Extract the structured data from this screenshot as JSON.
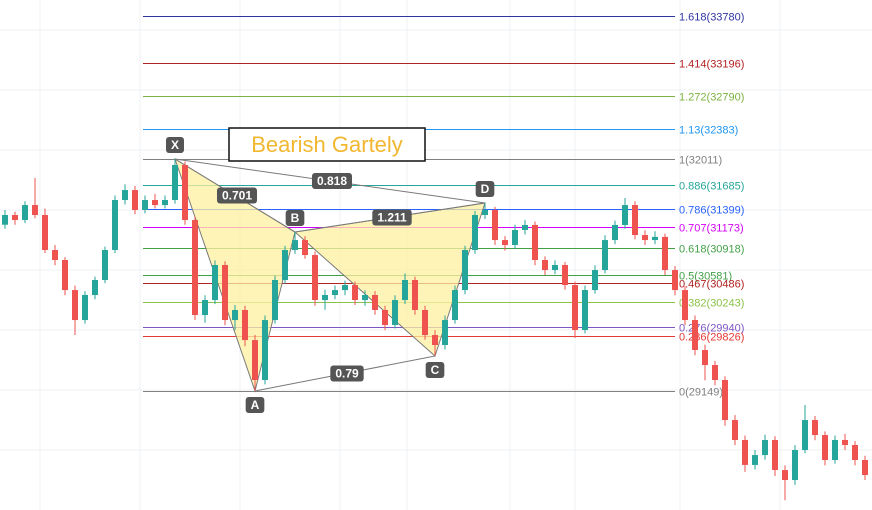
{
  "chart_data": {
    "type": "candlestick",
    "title": "Bearish Gartely",
    "ylim": [
      27680,
      33973
    ],
    "up_color": "#26a69a",
    "down_color": "#ef5350",
    "ohlc": [
      [
        31200,
        31380,
        31150,
        31320
      ],
      [
        31320,
        31360,
        31200,
        31258
      ],
      [
        31258,
        31490,
        31220,
        31443
      ],
      [
        31443,
        31777,
        31280,
        31320
      ],
      [
        31320,
        31400,
        30850,
        30888
      ],
      [
        30888,
        30950,
        30700,
        30765
      ],
      [
        30765,
        30800,
        30330,
        30394
      ],
      [
        30394,
        30450,
        29839,
        30024
      ],
      [
        30024,
        30380,
        29980,
        30333
      ],
      [
        30333,
        30560,
        30280,
        30518
      ],
      [
        30518,
        30930,
        30480,
        30888
      ],
      [
        30888,
        31560,
        30850,
        31505
      ],
      [
        31505,
        31700,
        31450,
        31628
      ],
      [
        31628,
        31680,
        31330,
        31382
      ],
      [
        31382,
        31560,
        31340,
        31505
      ],
      [
        31505,
        31580,
        31400,
        31443
      ],
      [
        31443,
        31560,
        31400,
        31505
      ],
      [
        31505,
        32011,
        31460,
        31937
      ],
      [
        31937,
        31980,
        31200,
        31258
      ],
      [
        31258,
        31300,
        30024,
        30086
      ],
      [
        30086,
        30330,
        29990,
        30271
      ],
      [
        30271,
        30760,
        30220,
        30703
      ],
      [
        30703,
        30750,
        29960,
        30024
      ],
      [
        30024,
        30210,
        29900,
        30148
      ],
      [
        30148,
        30200,
        29700,
        29777
      ],
      [
        29777,
        29840,
        29149,
        29284
      ],
      [
        29284,
        30080,
        29230,
        30024
      ],
      [
        30024,
        30570,
        29980,
        30518
      ],
      [
        30518,
        30940,
        30470,
        30888
      ],
      [
        30888,
        31110,
        30840,
        31011
      ],
      [
        31011,
        31060,
        30780,
        30826
      ],
      [
        30826,
        30870,
        30200,
        30271
      ],
      [
        30271,
        30400,
        30150,
        30333
      ],
      [
        30333,
        30450,
        30280,
        30394
      ],
      [
        30394,
        30510,
        30330,
        30456
      ],
      [
        30456,
        30500,
        30210,
        30271
      ],
      [
        30271,
        30390,
        30200,
        30333
      ],
      [
        30333,
        30380,
        30090,
        30148
      ],
      [
        30148,
        30200,
        29900,
        29963
      ],
      [
        29963,
        30330,
        29920,
        30271
      ],
      [
        30271,
        30600,
        30220,
        30518
      ],
      [
        30518,
        30560,
        30090,
        30148
      ],
      [
        30148,
        30200,
        29780,
        29839
      ],
      [
        29839,
        29900,
        29580,
        29716
      ],
      [
        29716,
        30080,
        29660,
        30024
      ],
      [
        30024,
        30450,
        29980,
        30394
      ],
      [
        30394,
        30940,
        30340,
        30888
      ],
      [
        30888,
        31370,
        30840,
        31320
      ],
      [
        31320,
        31468,
        31270,
        31382
      ],
      [
        31382,
        31420,
        30950,
        31011
      ],
      [
        31011,
        31060,
        30880,
        30950
      ],
      [
        30950,
        31200,
        30900,
        31135
      ],
      [
        31135,
        31260,
        31080,
        31197
      ],
      [
        31197,
        31240,
        30700,
        30765
      ],
      [
        30765,
        30810,
        30580,
        30641
      ],
      [
        30641,
        30760,
        30590,
        30703
      ],
      [
        30703,
        30740,
        30400,
        30456
      ],
      [
        30456,
        30500,
        29802,
        29901
      ],
      [
        29901,
        30450,
        29860,
        30394
      ],
      [
        30394,
        30700,
        30350,
        30641
      ],
      [
        30641,
        31070,
        30600,
        31011
      ],
      [
        31011,
        31250,
        30960,
        31197
      ],
      [
        31197,
        31530,
        31150,
        31443
      ],
      [
        31443,
        31490,
        31020,
        31073
      ],
      [
        31073,
        31130,
        30950,
        31011
      ],
      [
        31011,
        31120,
        30960,
        31050
      ],
      [
        31050,
        31090,
        30580,
        30641
      ],
      [
        30641,
        30690,
        30330,
        30394
      ],
      [
        30394,
        30440,
        29960,
        30024
      ],
      [
        30024,
        30080,
        29590,
        29654
      ],
      [
        29654,
        29720,
        29280,
        29469
      ],
      [
        29469,
        29520,
        29220,
        29284
      ],
      [
        29284,
        29330,
        28720,
        28790
      ],
      [
        28790,
        28850,
        28480,
        28544
      ],
      [
        28544,
        28600,
        28150,
        28236
      ],
      [
        28236,
        28420,
        28180,
        28358
      ],
      [
        28358,
        28610,
        28300,
        28544
      ],
      [
        28544,
        28590,
        28100,
        28173
      ],
      [
        28173,
        28230,
        27800,
        28050
      ],
      [
        28050,
        28480,
        27990,
        28420
      ],
      [
        28420,
        28975,
        28380,
        28790
      ],
      [
        28790,
        28840,
        28540,
        28605
      ],
      [
        28605,
        28650,
        28230,
        28297
      ],
      [
        28297,
        28600,
        28250,
        28544
      ],
      [
        28544,
        28620,
        28420,
        28482
      ],
      [
        28482,
        28530,
        28230,
        28297
      ],
      [
        28297,
        28350,
        28050,
        28112
      ]
    ],
    "fib_levels": [
      {
        "value": 33780,
        "label": "1.618(33780)",
        "color": "#3034a0"
      },
      {
        "value": 33196,
        "label": "1.414(33196)",
        "color": "#b22222"
      },
      {
        "value": 32790,
        "label": "1.272(32790)",
        "color": "#7cb342"
      },
      {
        "value": 32383,
        "label": "1.13(32383)",
        "color": "#2196f3"
      },
      {
        "value": 32011,
        "label": "1(32011)",
        "color": "#808080"
      },
      {
        "value": 31685,
        "label": "0.886(31685)",
        "color": "#26a69a"
      },
      {
        "value": 31399,
        "label": "0.786(31399)",
        "color": "#2962ff"
      },
      {
        "value": 31173,
        "label": "0.707(31173)",
        "color": "#d500f9"
      },
      {
        "value": 30918,
        "label": "0.618(30918)",
        "color": "#43a047"
      },
      {
        "value": 30581,
        "label": "0.5(30581)",
        "color": "#43a047"
      },
      {
        "value": 30486,
        "label": "0.467(30486)",
        "color": "#b22222"
      },
      {
        "value": 30243,
        "label": "0.382(30243)",
        "color": "#8bc34a"
      },
      {
        "value": 29940,
        "label": "0.276(29940)",
        "color": "#7e57c2"
      },
      {
        "value": 29826,
        "label": "0.236(29826)",
        "color": "#e53935"
      },
      {
        "value": 29149,
        "label": "0(29149)",
        "color": "#808080"
      }
    ],
    "pattern": {
      "fill": "#fff0a0",
      "line_color": "#7a7a7a",
      "points": [
        {
          "label": "X",
          "x": 17,
          "value": 32011
        },
        {
          "label": "A",
          "x": 25,
          "value": 29149
        },
        {
          "label": "B",
          "x": 29,
          "value": 31110
        },
        {
          "label": "C",
          "x": 43,
          "value": 29580
        },
        {
          "label": "D",
          "x": 48,
          "value": 31468
        }
      ],
      "ratios": [
        {
          "value": 0.701,
          "from": 0,
          "to": 2
        },
        {
          "value": 1.211,
          "from": 2,
          "to": 4
        },
        {
          "value": 0.818,
          "from": 0,
          "to": 4
        },
        {
          "value": 0.79,
          "from": 1,
          "to": 3
        }
      ]
    }
  }
}
